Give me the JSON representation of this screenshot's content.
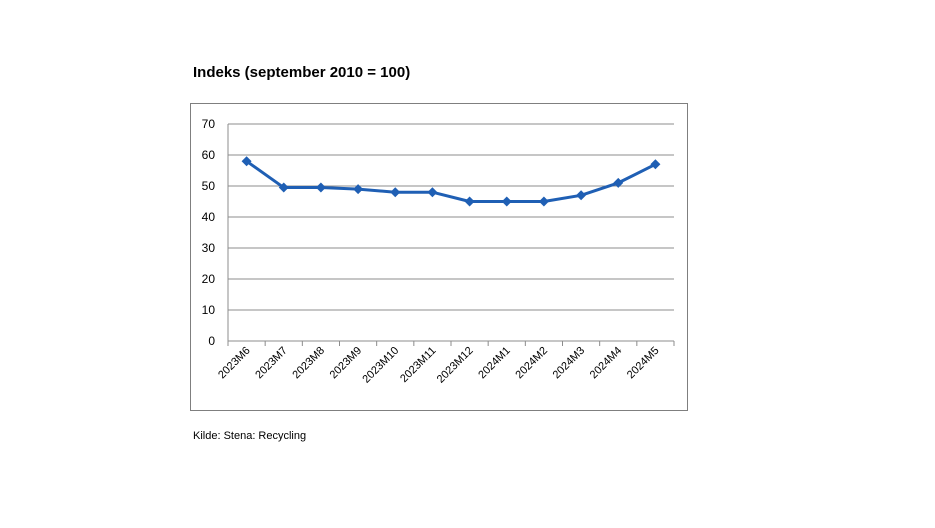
{
  "chart_data": {
    "type": "line",
    "title": "Indeks (september 2010 = 100)",
    "xlabel": "",
    "ylabel": "",
    "categories": [
      "2023M6",
      "2023M7",
      "2023M8",
      "2023M9",
      "2023M10",
      "2023M11",
      "2023M12",
      "2024M1",
      "2024M2",
      "2024M3",
      "2024M4",
      "2024M5"
    ],
    "series": [
      {
        "name": "Indeks",
        "values": [
          58,
          49.5,
          49.5,
          49,
          48,
          48,
          45,
          45,
          45,
          47,
          51,
          57
        ],
        "color": "#1f5fb4"
      }
    ],
    "ylim": [
      0,
      70
    ],
    "yticks": [
      0,
      10,
      20,
      30,
      40,
      50,
      60,
      70
    ],
    "grid": true,
    "legend": "none"
  },
  "source": "Kilde: Stena: Recycling",
  "colors": {
    "line": "#1f5fb4",
    "grid": "#8c8c8c",
    "text": "#000000"
  }
}
